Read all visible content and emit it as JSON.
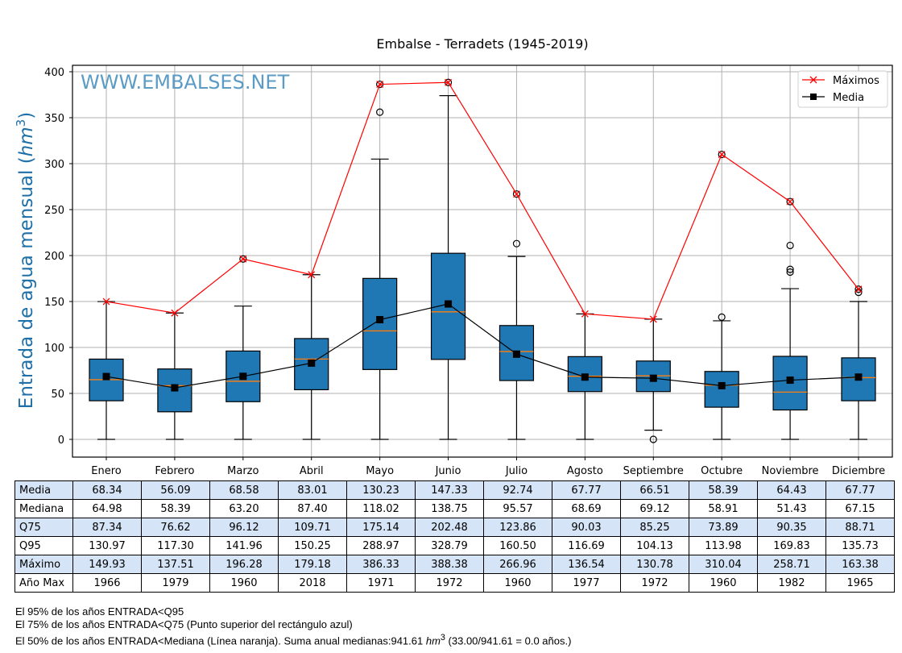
{
  "chart_data": {
    "type": "boxplot",
    "title": "Embalse - Terradets (1945-2019)",
    "watermark": "WWW.EMBALSES.NET",
    "ylabel": "Entrada de agua mensual (hm³)",
    "ylabel_text": "Entrada de agua mensual (",
    "ylabel_unit": "hm",
    "ylabel_sup": "3",
    "ylabel_close": ")",
    "xlabel": "",
    "ylim": [
      -20,
      405
    ],
    "yticks": [
      0,
      50,
      100,
      150,
      200,
      250,
      300,
      350,
      400
    ],
    "grid": true,
    "legend": {
      "placement": "top-right",
      "entries": [
        {
          "label": "Máximos",
          "color": "#ff0000",
          "marker": "x"
        },
        {
          "label": "Media",
          "color": "#000000",
          "marker": "square"
        }
      ]
    },
    "categories": [
      "Enero",
      "Febrero",
      "Marzo",
      "Abril",
      "Mayo",
      "Junio",
      "Julio",
      "Agosto",
      "Septiembre",
      "Octubre",
      "Noviembre",
      "Diciembre"
    ],
    "box_color": "#1f77b4",
    "median_color": "#ff7f0e",
    "boxes": [
      {
        "q1": 42,
        "median": 64.98,
        "q3": 87.34,
        "whisker_low": 0,
        "whisker_high": 149.93,
        "outliers": []
      },
      {
        "q1": 30,
        "median": 58.39,
        "q3": 76.62,
        "whisker_low": 0,
        "whisker_high": 137.51,
        "outliers": []
      },
      {
        "q1": 41,
        "median": 63.2,
        "q3": 96.12,
        "whisker_low": 0,
        "whisker_high": 145,
        "outliers": [
          196.28
        ]
      },
      {
        "q1": 54,
        "median": 87.4,
        "q3": 109.71,
        "whisker_low": 0,
        "whisker_high": 179.18,
        "outliers": []
      },
      {
        "q1": 76,
        "median": 118.02,
        "q3": 175.14,
        "whisker_low": 0,
        "whisker_high": 305,
        "outliers": [
          356,
          386.33
        ]
      },
      {
        "q1": 87,
        "median": 138.75,
        "q3": 202.48,
        "whisker_low": 0,
        "whisker_high": 374,
        "outliers": [
          388.38
        ]
      },
      {
        "q1": 64,
        "median": 95.57,
        "q3": 123.86,
        "whisker_low": 0,
        "whisker_high": 199,
        "outliers": [
          213,
          266.96
        ]
      },
      {
        "q1": 52,
        "median": 68.69,
        "q3": 90.03,
        "whisker_low": 0,
        "whisker_high": 136.54,
        "outliers": []
      },
      {
        "q1": 52,
        "median": 69.12,
        "q3": 85.25,
        "whisker_low": 10,
        "whisker_high": 130.78,
        "outliers": [
          0
        ]
      },
      {
        "q1": 35,
        "median": 58.91,
        "q3": 73.89,
        "whisker_low": 0,
        "whisker_high": 129,
        "outliers": [
          133,
          310.04
        ]
      },
      {
        "q1": 32,
        "median": 51.43,
        "q3": 90.35,
        "whisker_low": 0,
        "whisker_high": 164,
        "outliers": [
          182,
          185,
          211,
          258.71
        ]
      },
      {
        "q1": 42,
        "median": 67.15,
        "q3": 88.71,
        "whisker_low": 0,
        "whisker_high": 150,
        "outliers": [
          160,
          163.38
        ]
      }
    ],
    "series": [
      {
        "name": "Máximos",
        "values": [
          149.93,
          137.51,
          196.28,
          179.18,
          386.33,
          388.38,
          266.96,
          136.54,
          130.78,
          310.04,
          258.71,
          163.38
        ]
      },
      {
        "name": "Media",
        "values": [
          68.34,
          56.09,
          68.58,
          83.01,
          130.23,
          147.33,
          92.74,
          67.77,
          66.51,
          58.39,
          64.43,
          67.77
        ]
      }
    ]
  },
  "table": {
    "rows": [
      {
        "label": "Media",
        "values": [
          "68.34",
          "56.09",
          "68.58",
          "83.01",
          "130.23",
          "147.33",
          "92.74",
          "67.77",
          "66.51",
          "58.39",
          "64.43",
          "67.77"
        ]
      },
      {
        "label": "Mediana",
        "values": [
          "64.98",
          "58.39",
          "63.20",
          "87.40",
          "118.02",
          "138.75",
          "95.57",
          "68.69",
          "69.12",
          "58.91",
          "51.43",
          "67.15"
        ]
      },
      {
        "label": "Q75",
        "values": [
          "87.34",
          "76.62",
          "96.12",
          "109.71",
          "175.14",
          "202.48",
          "123.86",
          "90.03",
          "85.25",
          "73.89",
          "90.35",
          "88.71"
        ]
      },
      {
        "label": "Q95",
        "values": [
          "130.97",
          "117.30",
          "141.96",
          "150.25",
          "288.97",
          "328.79",
          "160.50",
          "116.69",
          "104.13",
          "113.98",
          "169.83",
          "135.73"
        ]
      },
      {
        "label": "Máximo",
        "values": [
          "149.93",
          "137.51",
          "196.28",
          "179.18",
          "386.33",
          "388.38",
          "266.96",
          "136.54",
          "130.78",
          "310.04",
          "258.71",
          "163.38"
        ]
      },
      {
        "label": "Año Max",
        "values": [
          "1966",
          "1979",
          "1960",
          "2018",
          "1971",
          "1972",
          "1960",
          "1977",
          "1972",
          "1960",
          "1982",
          "1965"
        ]
      }
    ]
  },
  "notes": {
    "line1": "El 95% de los años ENTRADA<Q95",
    "line2": "El 75% de los años ENTRADA<Q75 (Punto superior del rectángulo azul)",
    "line3_a": "El 50% de los años ENTRADA<Mediana (Línea naranja). Suma anual medianas:941.61 ",
    "line3_unit": "hm",
    "line3_sup": "3",
    "line3_b": " (33.00/941.61 = 0.0 años.)"
  }
}
